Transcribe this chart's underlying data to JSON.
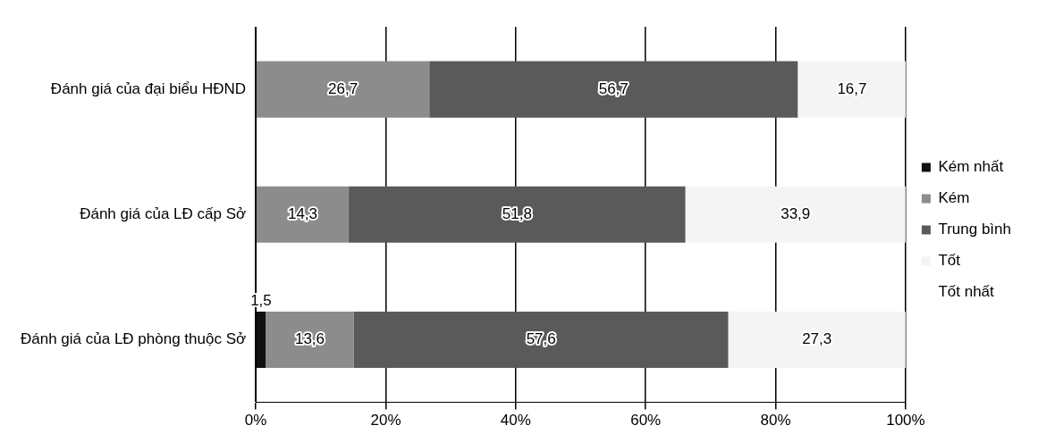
{
  "chart_data": {
    "type": "bar",
    "orientation": "horizontal",
    "stacked": true,
    "categories": [
      "Đánh giá của đại biểu HĐND",
      "Đánh giá của LĐ cấp Sở",
      "Đánh giá của LĐ phòng thuộc Sở"
    ],
    "series": [
      {
        "name": "Kém nhất",
        "color": "#111111",
        "values": [
          0,
          0,
          1.5
        ],
        "value_labels": [
          null,
          null,
          "1,5"
        ]
      },
      {
        "name": "Kém",
        "color": "#8c8c8c",
        "values": [
          26.7,
          14.3,
          13.6
        ],
        "value_labels": [
          "26,7",
          "14,3",
          "13,6"
        ]
      },
      {
        "name": "Trung bình",
        "color": "#5a5a5a",
        "values": [
          56.7,
          51.8,
          57.6
        ],
        "value_labels": [
          "56,7",
          "51,8",
          "57,6"
        ]
      },
      {
        "name": "Tốt",
        "color": "#f4f4f4",
        "values": [
          16.7,
          33.9,
          27.3
        ],
        "value_labels": [
          "16,7",
          "33,9",
          "27,3"
        ]
      },
      {
        "name": "Tốt nhất",
        "values": [
          0,
          0,
          0
        ],
        "value_labels": [
          null,
          null,
          null
        ]
      }
    ],
    "xlim": [
      0,
      100
    ],
    "xticks": [
      {
        "value": 0,
        "label": "0%"
      },
      {
        "value": 20,
        "label": "20%"
      },
      {
        "value": 40,
        "label": "40%"
      },
      {
        "value": 60,
        "label": "60%"
      },
      {
        "value": 80,
        "label": "80%"
      },
      {
        "value": 100,
        "label": "100%"
      }
    ],
    "grid": "x",
    "legend": "right"
  }
}
